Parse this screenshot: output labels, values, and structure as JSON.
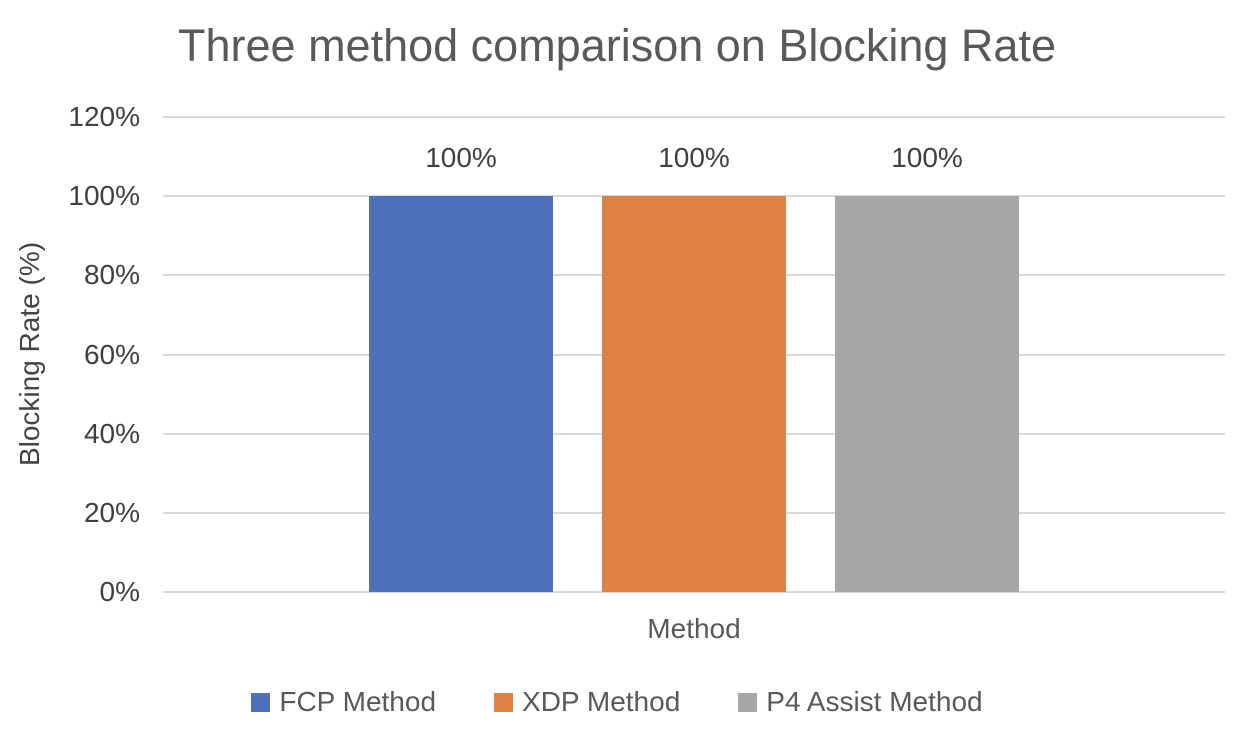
{
  "chart_data": {
    "type": "bar",
    "title": "Three method comparison on Blocking Rate",
    "xlabel": "Method",
    "ylabel": "Blocking Rate (%)",
    "categories": [
      "Method"
    ],
    "series": [
      {
        "name": "FCP Method",
        "values": [
          100
        ],
        "color": "#4F71BC"
      },
      {
        "name": "XDP Method",
        "values": [
          100
        ],
        "color": "#DE8244"
      },
      {
        "name": "P4 Assist Method",
        "values": [
          100
        ],
        "color": "#A6A6A6"
      }
    ],
    "data_labels": [
      "100%",
      "100%",
      "100%"
    ],
    "y_ticks": [
      0,
      20,
      40,
      60,
      80,
      100,
      120
    ],
    "y_tick_suffix": "%",
    "ylim": [
      0,
      120
    ],
    "grid": true,
    "legend_position": "bottom",
    "colors": {
      "gridline": "#D9D9D9",
      "title_text": "#595959",
      "axis_tick_text": "#404040",
      "data_label_text": "#404040",
      "legend_text": "#595959",
      "background": "#FFFFFF"
    }
  }
}
